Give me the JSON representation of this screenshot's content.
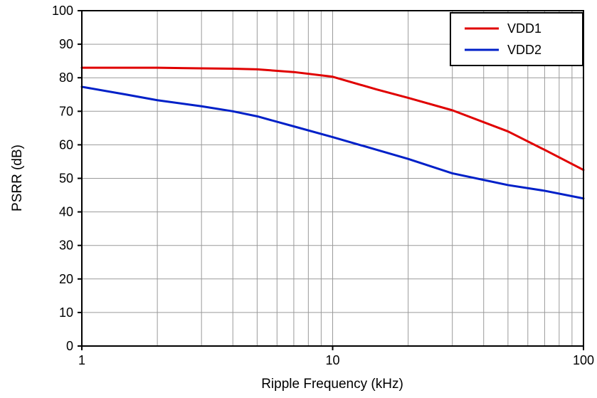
{
  "chart_data": {
    "type": "line",
    "title": "",
    "xlabel": "Ripple Frequency (kHz)",
    "ylabel": "PSRR (dB)",
    "x_scale": "log",
    "xlim": [
      1,
      100
    ],
    "ylim": [
      0,
      100
    ],
    "x_ticks": [
      1,
      10,
      100
    ],
    "y_ticks": [
      0,
      10,
      20,
      30,
      40,
      50,
      60,
      70,
      80,
      90,
      100
    ],
    "grid": true,
    "legend_position": "top-right",
    "x": [
      1,
      1.5,
      2,
      3,
      4,
      5,
      7,
      10,
      15,
      20,
      30,
      50,
      70,
      100
    ],
    "series": [
      {
        "name": "VDD1",
        "color": "#e00000",
        "values": [
          83,
          83,
          83,
          82.8,
          82.7,
          82.5,
          81.7,
          80.3,
          76.5,
          74,
          70.3,
          64,
          58.5,
          52.5
        ]
      },
      {
        "name": "VDD2",
        "color": "#0020c8",
        "values": [
          77.3,
          75,
          73.3,
          71.5,
          70,
          68.5,
          65.5,
          62.3,
          58.5,
          55.8,
          51.5,
          48,
          46.3,
          44
        ]
      }
    ]
  },
  "colors": {
    "grid": "#9a9a9a",
    "axis": "#000000",
    "background": "#ffffff"
  }
}
